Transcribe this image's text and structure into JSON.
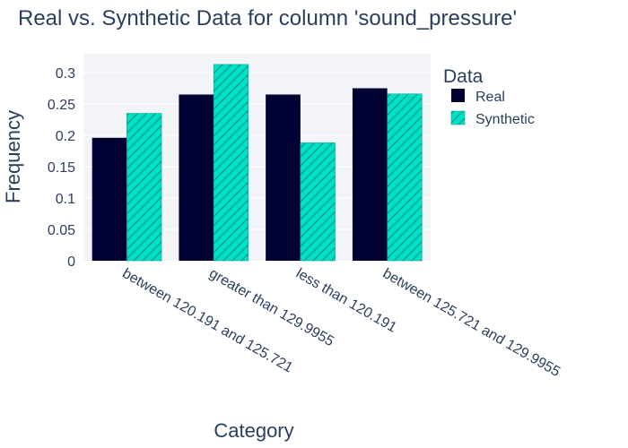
{
  "chart_data": {
    "type": "bar",
    "title": "Real vs. Synthetic Data for column 'sound_pressure'",
    "xlabel": "Category",
    "ylabel": "Frequency",
    "categories": [
      "between 120.191 and 125.721",
      "greater than 129.9955",
      "less than 120.191",
      "between 125.721 and 129.9955"
    ],
    "series": [
      {
        "name": "Real",
        "values": [
          0.196,
          0.265,
          0.265,
          0.275
        ]
      },
      {
        "name": "Synthetic",
        "values": [
          0.235,
          0.313,
          0.188,
          0.266
        ]
      }
    ],
    "ylim": [
      0,
      0.33
    ],
    "yticks": [
      0,
      0.05,
      0.1,
      0.15,
      0.2,
      0.25,
      0.3
    ],
    "ytick_labels": [
      "0",
      "0.05",
      "0.1",
      "0.15",
      "0.2",
      "0.25",
      "0.3"
    ],
    "legend_title": "Data",
    "legend_position": "top-right",
    "grid": true,
    "colors": {
      "real": "#000033",
      "synthetic": "#00e0c4",
      "hatch": "#00998a",
      "plot_bg": "#f3f4f8",
      "text": "#2a3f5f"
    }
  }
}
